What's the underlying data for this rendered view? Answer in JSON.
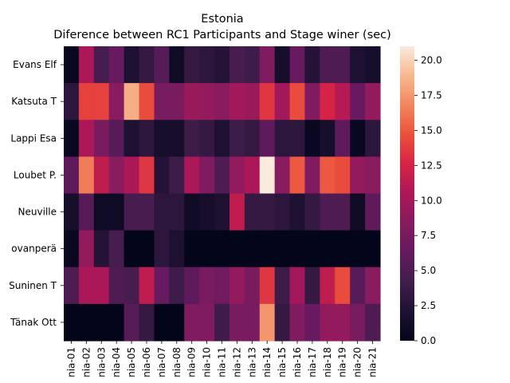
{
  "chart_data": {
    "type": "heatmap",
    "title": "Estonia",
    "subtitle": "Diference between RC1 Participants and Stage winer (sec)",
    "rows": [
      "Evans  Elf",
      "Katsuta  T",
      "Lappi  Esa",
      "Loubet  P.",
      "Neuville  ",
      "ovanperä",
      "Suninen  T",
      "Tänak  Ott"
    ],
    "columns": [
      "nia-01",
      "nia-02",
      "nia-03",
      "nia-04",
      "nia-05",
      "nia-06",
      "nia-07",
      "nia-08",
      "nia-09",
      "nia-10",
      "nia-11",
      "nia-12",
      "nia-13",
      "nia-14",
      "nia-15",
      "nia-16",
      "nia-17",
      "nia-18",
      "nia-19",
      "nia-20",
      "nia-21"
    ],
    "values": [
      [
        0.5,
        10.5,
        4.5,
        6.5,
        2.0,
        3.5,
        5.5,
        1.0,
        3.5,
        3.0,
        2.5,
        4.5,
        4.0,
        8.0,
        1.5,
        6.5,
        2.5,
        5.0,
        5.0,
        2.0,
        1.5
      ],
      [
        3.0,
        14.0,
        14.0,
        8.5,
        18.5,
        14.5,
        7.5,
        7.5,
        9.5,
        9.0,
        8.5,
        10.0,
        9.5,
        13.5,
        10.0,
        14.5,
        8.0,
        12.5,
        11.0,
        6.5,
        9.0
      ],
      [
        0.5,
        10.5,
        7.5,
        5.5,
        2.0,
        3.0,
        1.5,
        1.5,
        4.0,
        3.5,
        2.0,
        4.0,
        3.5,
        6.0,
        3.0,
        3.0,
        0.5,
        1.5,
        6.0,
        0.5,
        3.0
      ],
      [
        6.0,
        16.5,
        11.5,
        8.5,
        10.5,
        13.5,
        2.5,
        4.0,
        10.5,
        8.0,
        5.0,
        9.0,
        10.5,
        21.0,
        8.5,
        15.0,
        8.0,
        15.0,
        14.5,
        9.0,
        8.5
      ],
      [
        1.5,
        5.5,
        1.0,
        1.0,
        4.5,
        4.5,
        3.0,
        3.0,
        1.0,
        1.5,
        2.0,
        11.5,
        3.5,
        3.5,
        3.0,
        2.0,
        3.5,
        5.0,
        5.0,
        1.0,
        6.0
      ],
      [
        0.5,
        9.0,
        2.5,
        4.5,
        0.0,
        0.0,
        3.0,
        2.0,
        0.0,
        0.0,
        0.0,
        0.0,
        0.0,
        0.0,
        0.0,
        0.0,
        0.0,
        0.0,
        0.0,
        0.0,
        0.0
      ],
      [
        5.0,
        10.5,
        10.5,
        5.0,
        4.5,
        11.5,
        6.5,
        4.0,
        6.0,
        7.5,
        7.0,
        9.0,
        7.5,
        13.5,
        4.0,
        10.0,
        3.5,
        11.5,
        14.5,
        5.5,
        8.5
      ],
      [
        0.0,
        0.0,
        0.0,
        0.0,
        5.5,
        3.5,
        0.0,
        0.0,
        8.0,
        8.0,
        4.0,
        7.5,
        7.5,
        17.5,
        3.5,
        8.0,
        6.5,
        9.0,
        9.0,
        7.5,
        5.0
      ]
    ],
    "colorbar": {
      "ticks": [
        0.0,
        2.5,
        5.0,
        7.5,
        10.0,
        12.5,
        15.0,
        17.5,
        20.0
      ],
      "tick_labels": [
        "0.0",
        "2.5",
        "5.0",
        "7.5",
        "10.0",
        "12.5",
        "15.0",
        "17.5",
        "20.0"
      ],
      "range": [
        0,
        21
      ],
      "colormap": "rocket"
    }
  }
}
